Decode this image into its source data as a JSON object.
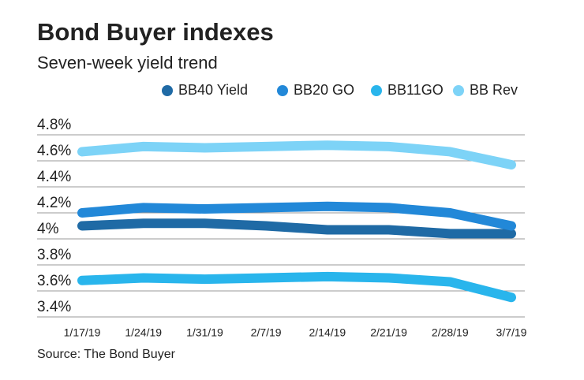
{
  "chart_data": {
    "type": "line",
    "title": "Bond Buyer indexes",
    "subtitle": "Seven-week yield trend",
    "source": "Source: The Bond Buyer",
    "categories": [
      "1/17/19",
      "1/24/19",
      "1/31/19",
      "2/7/19",
      "2/14/19",
      "2/21/19",
      "2/28/19",
      "3/7/19"
    ],
    "series": [
      {
        "name": "BB40 Yield",
        "color": "#1f6aa5",
        "values": [
          4.1,
          4.12,
          4.12,
          4.1,
          4.07,
          4.07,
          4.04,
          4.04
        ]
      },
      {
        "name": "BB20 GO",
        "color": "#2288d8",
        "values": [
          4.2,
          4.24,
          4.23,
          4.24,
          4.25,
          4.24,
          4.2,
          4.1
        ]
      },
      {
        "name": "BB11GO",
        "color": "#29b5ec",
        "values": [
          3.68,
          3.7,
          3.69,
          3.7,
          3.71,
          3.7,
          3.67,
          3.55
        ]
      },
      {
        "name": "BB Rev",
        "color": "#7dd3f7",
        "values": [
          4.67,
          4.71,
          4.7,
          4.71,
          4.72,
          4.71,
          4.67,
          4.57
        ]
      }
    ],
    "ylim": [
      3.4,
      4.8
    ],
    "yticks": [
      {
        "value": 3.4,
        "label": "3.4%"
      },
      {
        "value": 3.6,
        "label": "3.6%"
      },
      {
        "value": 3.8,
        "label": "3.8%"
      },
      {
        "value": 4.0,
        "label": "4%"
      },
      {
        "value": 4.2,
        "label": "4.2%"
      },
      {
        "value": 4.4,
        "label": "4.4%"
      },
      {
        "value": 4.6,
        "label": "4.6%"
      },
      {
        "value": 4.8,
        "label": "4.8%"
      }
    ],
    "grid": true
  }
}
